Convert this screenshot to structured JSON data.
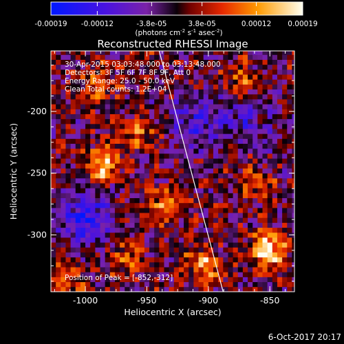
{
  "chart_data": {
    "type": "heatmap",
    "title": "Reconstructed RHESSI Image",
    "xlabel": "Heliocentric X (arcsec)",
    "ylabel": "Heliocentric Y (arcsec)",
    "xlim": [
      -1028,
      -830
    ],
    "ylim": [
      -346,
      -151
    ],
    "x_ticks": [
      -1000,
      -950,
      -900,
      -850
    ],
    "x_tick_labels": [
      "-1000",
      "-950",
      "-900",
      "-850"
    ],
    "y_ticks": [
      -200,
      -250,
      -300
    ],
    "y_tick_labels": [
      "-200",
      "-250",
      "-300"
    ],
    "colorbar": {
      "min": -0.00019,
      "max": 0.00019,
      "tick_values": [
        -0.00019,
        -0.00012,
        -3.8e-05,
        3.8e-05,
        0.00012,
        0.00019
      ],
      "tick_labels": [
        "-0.00019",
        "-0.00012",
        "-3.8e-05",
        "3.8e-05",
        "0.00012",
        "0.00019"
      ],
      "unit_label": "(photons cm",
      "unit_exp1": "-2",
      "unit_mid": " s",
      "unit_exp2": "-1",
      "unit_mid2": " asec",
      "unit_exp3": "-2",
      "unit_end": ")"
    },
    "annotations": {
      "time": "30-Apr-2015 03:03:48.000 to 03:13:48.000",
      "detectors": "Detectors: 3F 5F 6F 7F 8F 9F, Att 0",
      "energy": "Energy Range: 25.0 - 50.0 keV",
      "method": "Clean     Total counts: 1.2E+04",
      "peak": "Position of Peak = [-852,-312]"
    },
    "peak": [
      -852,
      -312
    ],
    "limb_line": [
      [
        -940,
        -151
      ],
      [
        -888,
        -346
      ]
    ],
    "bright_sources": [
      {
        "x": -852,
        "y": -312,
        "value": 0.00019
      },
      {
        "x": -986,
        "y": -243,
        "value": 0.00017
      },
      {
        "x": -902,
        "y": -326,
        "value": 0.00013
      },
      {
        "x": -935,
        "y": -277,
        "value": 0.00011
      },
      {
        "x": -958,
        "y": -216,
        "value": 0.0001
      },
      {
        "x": -990,
        "y": -178,
        "value": 9e-05
      },
      {
        "x": -873,
        "y": -176,
        "value": 9e-05
      },
      {
        "x": -862,
        "y": -257,
        "value": 8e-05
      },
      {
        "x": -1015,
        "y": -335,
        "value": 9e-05
      },
      {
        "x": -968,
        "y": -318,
        "value": 8e-05
      }
    ],
    "dim_regions": [
      {
        "x": -1000,
        "y": -285,
        "value": -0.00013
      },
      {
        "x": -910,
        "y": -208,
        "value": -9e-05
      },
      {
        "x": -868,
        "y": -205,
        "value": -7e-05
      }
    ]
  },
  "footer": {
    "date": "6-Oct-2017 20:17"
  }
}
